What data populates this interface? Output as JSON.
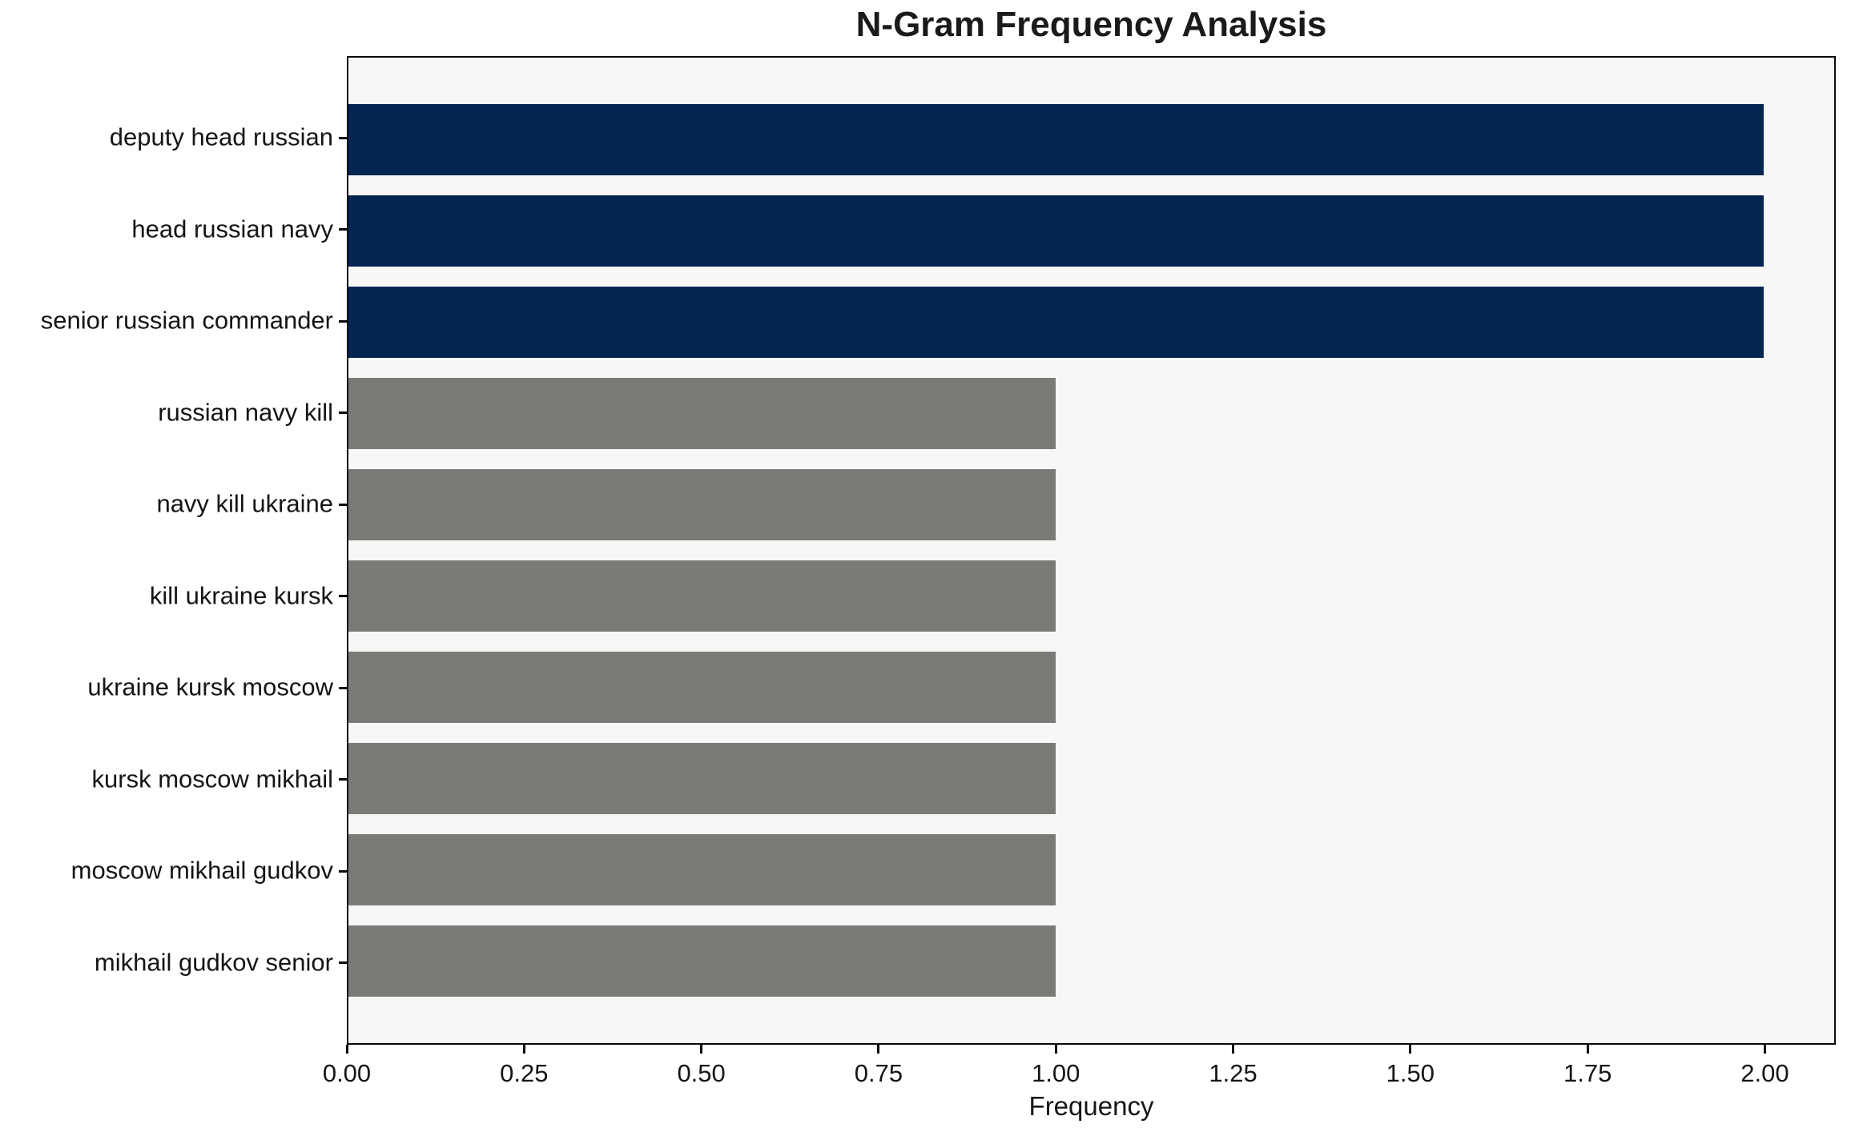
{
  "chart_data": {
    "type": "bar",
    "orientation": "horizontal",
    "title": "N-Gram Frequency Analysis",
    "xlabel": "Frequency",
    "ylabel": "",
    "categories": [
      "deputy head russian",
      "head russian navy",
      "senior russian commander",
      "russian navy kill",
      "navy kill ukraine",
      "kill ukraine kursk",
      "ukraine kursk moscow",
      "kursk moscow mikhail",
      "moscow mikhail gudkov",
      "mikhail gudkov senior"
    ],
    "values": [
      2,
      2,
      2,
      1,
      1,
      1,
      1,
      1,
      1,
      1
    ],
    "bar_colors": [
      "#042452",
      "#042452",
      "#042452",
      "#7b7a76",
      "#7b7a76",
      "#7b7a76",
      "#7b7a76",
      "#7b7a76",
      "#7b7a76",
      "#7b7a76"
    ],
    "xlim": [
      0,
      2.1
    ],
    "xticks": [
      "0.00",
      "0.25",
      "0.50",
      "0.75",
      "1.00",
      "1.25",
      "1.50",
      "1.75",
      "2.00"
    ],
    "xtick_values": [
      0,
      0.25,
      0.5,
      0.75,
      1.0,
      1.25,
      1.5,
      1.75,
      2.0
    ],
    "grid": false,
    "legend": "none",
    "colors": {
      "highlight_bar": "#042452",
      "default_bar": "#7b7a76",
      "plot_background": "#f7f7f7",
      "figure_background": "#ffffff",
      "axis_line": "#0a0a0a",
      "text": "#151515"
    }
  }
}
